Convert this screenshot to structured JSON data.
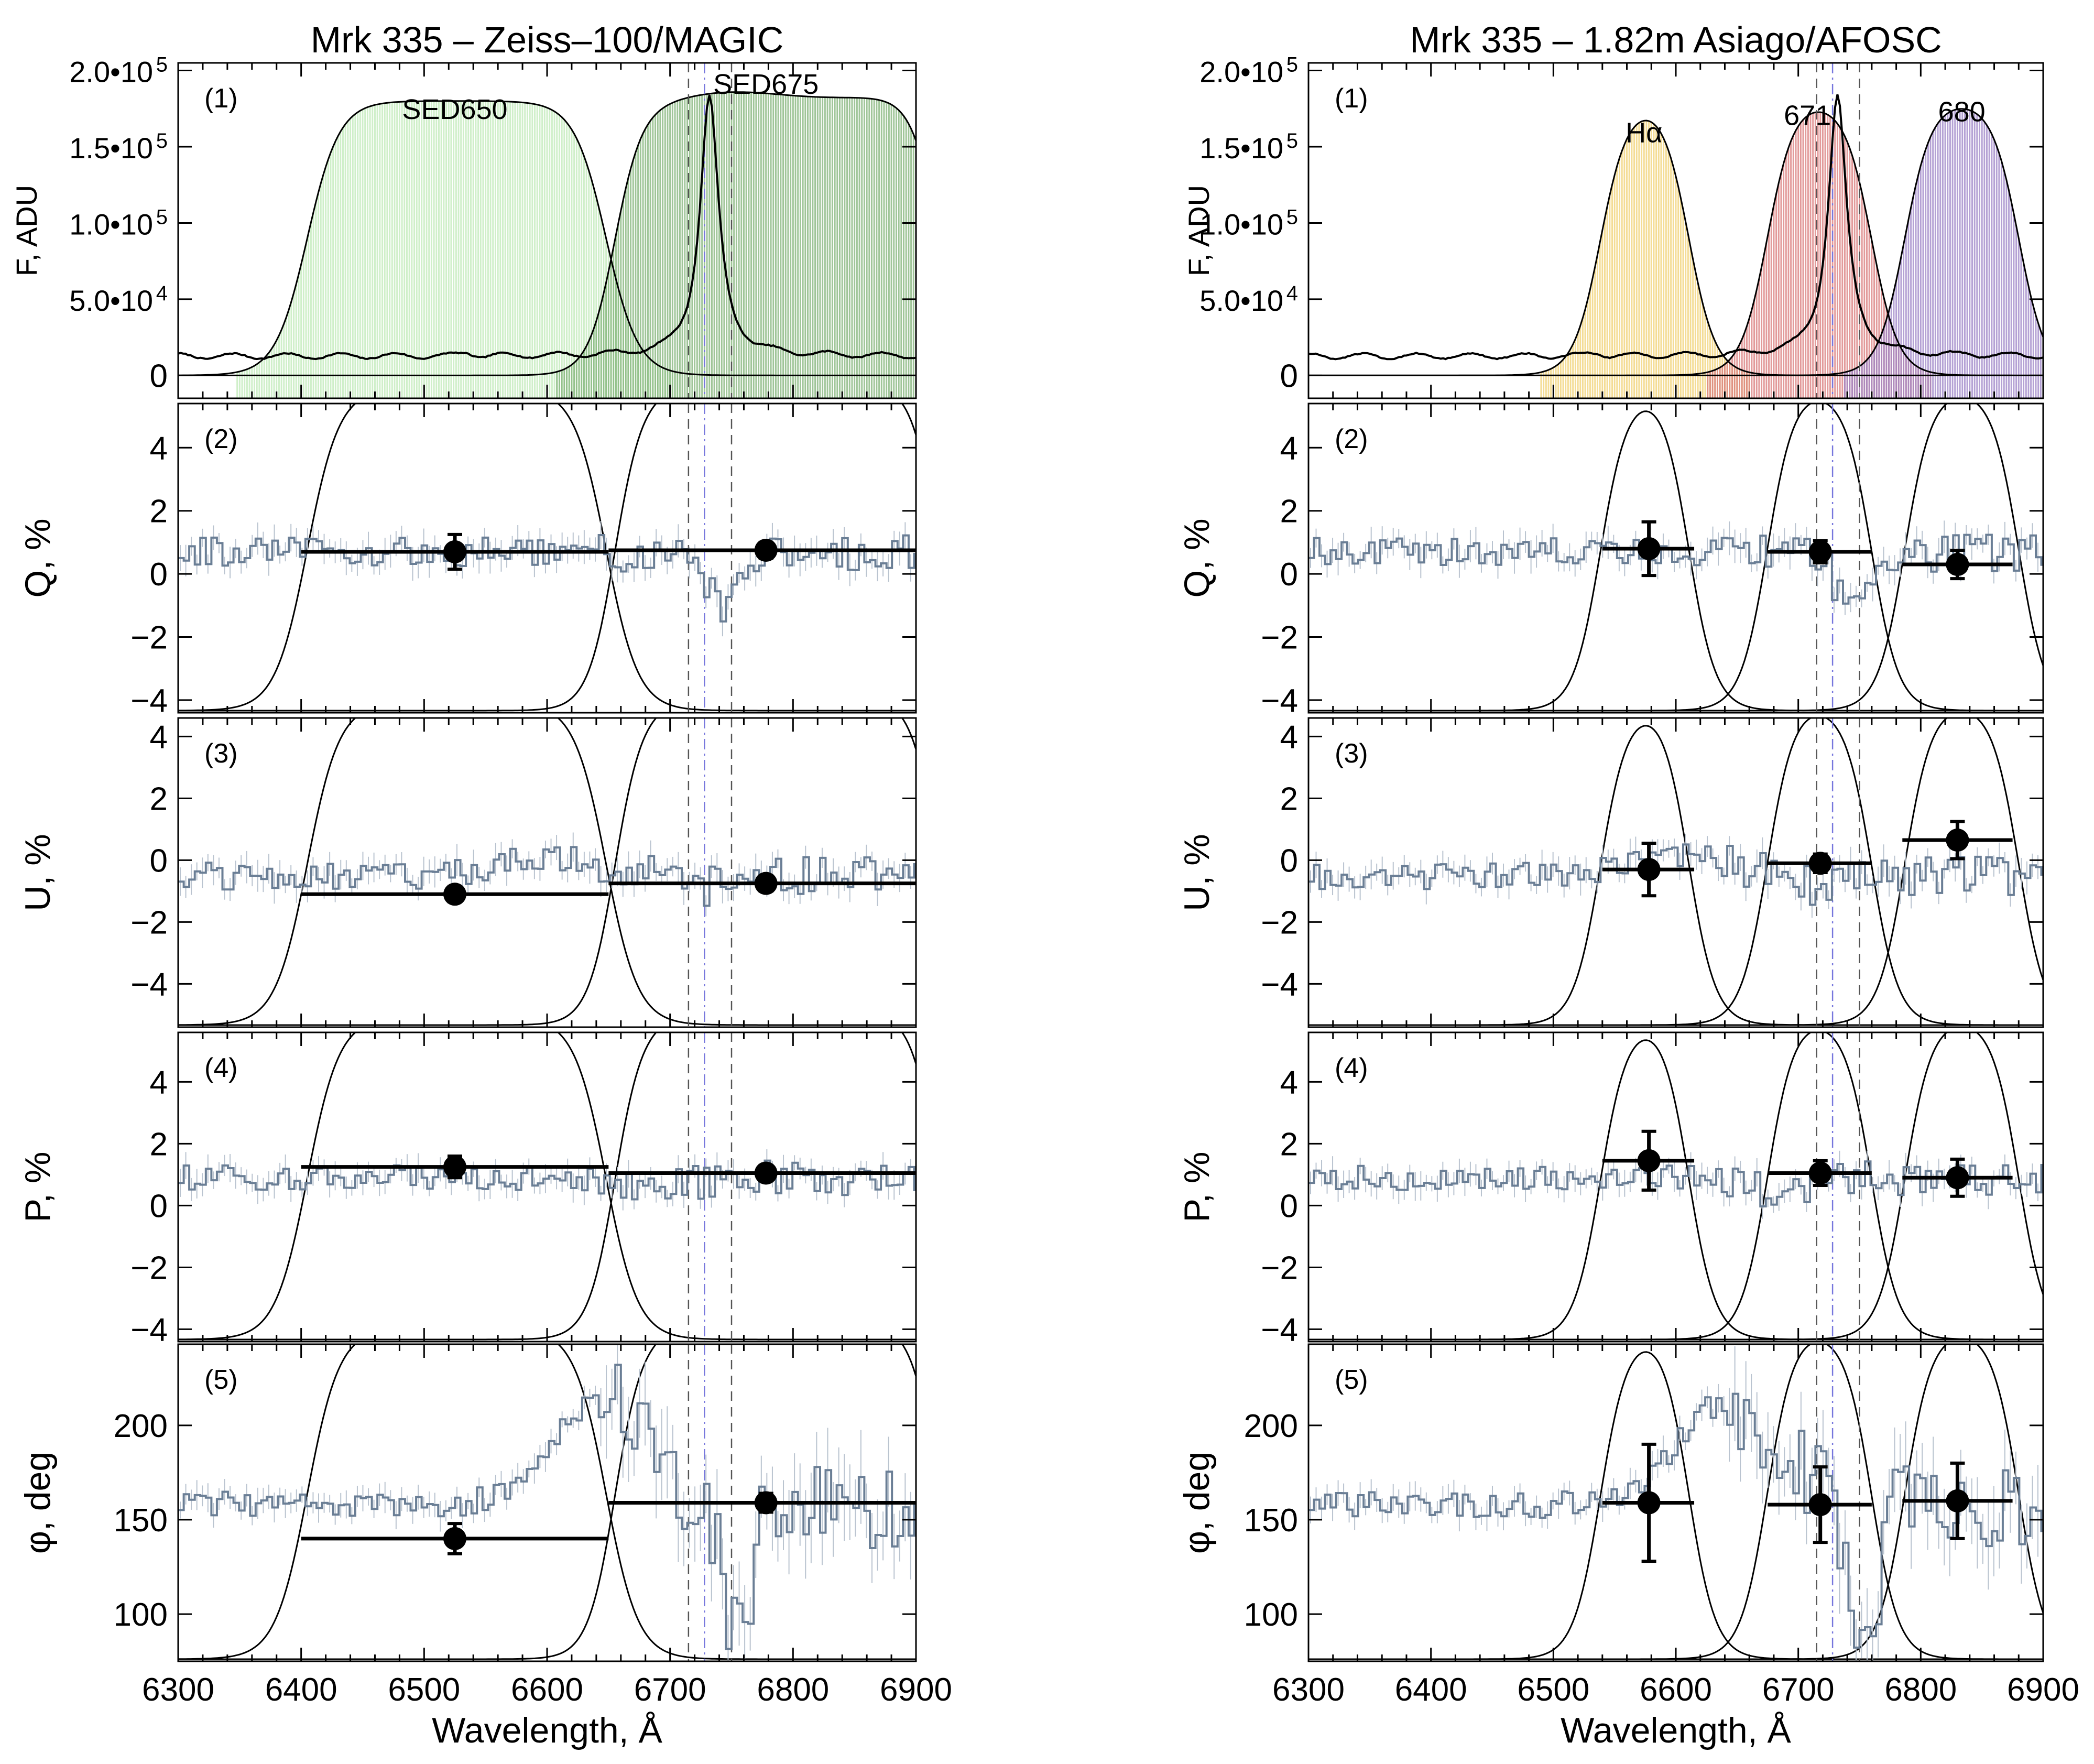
{
  "chart_data": [
    {
      "type": "line",
      "title": "Mrk 335   –   Zeiss–100/MAGIC",
      "xlabel": "Wavelength, Å",
      "xlim": [
        6300,
        6900
      ],
      "xticks": [
        "6300",
        "6400",
        "6500",
        "6600",
        "6700",
        "6800",
        "6900"
      ],
      "vlines": {
        "dashed": [
          6715,
          6750
        ],
        "dashdot": [
          6728
        ]
      },
      "filters": [
        {
          "name": "SED650",
          "left": 6405,
          "right": 6648,
          "width": 13,
          "peak": 0.9,
          "tilt": 0,
          "bump": 0,
          "color": "#bfe9b7",
          "label": "SED650"
        },
        {
          "name": "SED675",
          "left": 6655,
          "right": 6918,
          "width": 11,
          "peak": 0.93,
          "tilt": 0.05,
          "bump": 0.04,
          "color": "#7fb276",
          "label": "SED675"
        }
      ],
      "spectrum": {
        "continuum": 0.07,
        "line_center": 6732,
        "line_peak": 0.95,
        "line_width": 9
      },
      "panels": [
        {
          "id": "1",
          "label": "(1)",
          "ylabel": "F, ADU",
          "ylim": [
            -0.15,
            2.05
          ],
          "yticks": [
            {
              "v": 0,
              "t": "0"
            },
            {
              "v": 0.5,
              "t": "5.0•10",
              "e": "4"
            },
            {
              "v": 1.0,
              "t": "1.0•10",
              "e": "5"
            },
            {
              "v": 1.5,
              "t": "1.5•10",
              "e": "5"
            },
            {
              "v": 2.0,
              "t": "2.0•10",
              "e": "5"
            }
          ]
        },
        {
          "id": "2",
          "label": "(2)",
          "ylabel": "Q, %",
          "ylim": [
            -4.4,
            5.4
          ],
          "yticks": [
            {
              "v": -4,
              "t": "−4"
            },
            {
              "v": -2,
              "t": "−2"
            },
            {
              "v": 0,
              "t": "0"
            },
            {
              "v": 2,
              "t": "2"
            },
            {
              "v": 4,
              "t": "4"
            }
          ],
          "curve": {
            "base": 0.7,
            "amp": 0.45,
            "dips": [
              {
                "c": 6742,
                "w": 18,
                "a": -1.9
              }
            ]
          },
          "points": [
            {
              "x": 6525,
              "y": 0.7,
              "xerr": [
                6400,
                6650
              ],
              "yerr": 0.55
            },
            {
              "x": 6778,
              "y": 0.75,
              "xerr": [
                6650,
                6900
              ],
              "yerr": 0.25
            }
          ]
        },
        {
          "id": "3",
          "label": "(3)",
          "ylabel": "U, %",
          "ylim": [
            -5.4,
            4.6
          ],
          "yticks": [
            {
              "v": -4,
              "t": "−4"
            },
            {
              "v": -2,
              "t": "−2"
            },
            {
              "v": 0,
              "t": "0"
            },
            {
              "v": 2,
              "t": "2"
            },
            {
              "v": 4,
              "t": "4"
            }
          ],
          "curve": {
            "base": -0.5,
            "amp": 0.45,
            "dips": [
              {
                "c": 6600,
                "w": 60,
                "a": 0.6
              },
              {
                "c": 6720,
                "w": 25,
                "a": -0.4
              }
            ]
          },
          "points": [
            {
              "x": 6525,
              "y": -1.1,
              "xerr": [
                6400,
                6650
              ],
              "yerr": 0.25
            },
            {
              "x": 6778,
              "y": -0.75,
              "xerr": [
                6650,
                6900
              ],
              "yerr": 0.25
            }
          ]
        },
        {
          "id": "4",
          "label": "(4)",
          "ylabel": "P, %",
          "ylim": [
            -4.4,
            5.6
          ],
          "yticks": [
            {
              "v": -4,
              "t": "−4"
            },
            {
              "v": -2,
              "t": "−2"
            },
            {
              "v": 0,
              "t": "0"
            },
            {
              "v": 2,
              "t": "2"
            },
            {
              "v": 4,
              "t": "4"
            }
          ],
          "curve": {
            "base": 0.9,
            "amp": 0.4,
            "dips": [
              {
                "c": 6680,
                "w": 40,
                "a": -0.4
              }
            ]
          },
          "points": [
            {
              "x": 6525,
              "y": 1.25,
              "xerr": [
                6400,
                6650
              ],
              "yerr": 0.35
            },
            {
              "x": 6778,
              "y": 1.05,
              "xerr": [
                6650,
                6900
              ],
              "yerr": 0.25
            }
          ]
        },
        {
          "id": "5",
          "label": "(5)",
          "ylabel": "φ, deg",
          "ylim": [
            75,
            243
          ],
          "yticks": [
            {
              "v": 100,
              "t": "100"
            },
            {
              "v": 150,
              "t": "150"
            },
            {
              "v": 200,
              "t": "200"
            }
          ],
          "curve": {
            "base": 158,
            "amp": 7,
            "dips": [
              {
                "c": 6640,
                "w": 55,
                "a": 55
              },
              {
                "c": 6752,
                "w": 15,
                "a": -75
              }
            ]
          },
          "points": [
            {
              "x": 6525,
              "y": 140,
              "xerr": [
                6400,
                6650
              ],
              "yerr": 8
            },
            {
              "x": 6778,
              "y": 159,
              "xerr": [
                6650,
                6900
              ],
              "yerr": 5
            }
          ]
        }
      ]
    },
    {
      "type": "line",
      "title": "Mrk 335   –   1.82m Asiago/AFOSC",
      "xlabel": "Wavelength, Å",
      "xlim": [
        6300,
        6900
      ],
      "xticks": [
        "6300",
        "6400",
        "6500",
        "6600",
        "6700",
        "6800",
        "6900"
      ],
      "vlines": {
        "dashed": [
          6715,
          6750
        ],
        "dashdot": [
          6728
        ]
      },
      "filters": [
        {
          "name": "Hα",
          "left": 6538,
          "right": 6610,
          "width": 11,
          "peak": 0.78,
          "tilt": 0.06,
          "bump": 0,
          "color": "#f0d070",
          "label": "Hα"
        },
        {
          "name": "671",
          "left": 6675,
          "right": 6760,
          "width": 11,
          "peak": 0.88,
          "tilt": -0.03,
          "bump": 0,
          "color": "#d87878",
          "label": "671"
        },
        {
          "name": "680",
          "left": 6787,
          "right": 6880,
          "width": 11,
          "peak": 0.88,
          "tilt": 0,
          "bump": 0,
          "color": "#9b82c6",
          "label": "680"
        }
      ],
      "spectrum": {
        "continuum": 0.07,
        "line_center": 6732,
        "line_peak": 0.95,
        "line_width": 9
      },
      "panels": [
        {
          "id": "1",
          "label": "(1)",
          "ylabel": "F, ADU",
          "ylim": [
            -0.15,
            2.05
          ],
          "yticks": [
            {
              "v": 0,
              "t": "0"
            },
            {
              "v": 0.5,
              "t": "5.0•10",
              "e": "4"
            },
            {
              "v": 1.0,
              "t": "1.0•10",
              "e": "5"
            },
            {
              "v": 1.5,
              "t": "1.5•10",
              "e": "5"
            },
            {
              "v": 2.0,
              "t": "2.0•10",
              "e": "5"
            }
          ]
        },
        {
          "id": "2",
          "label": "(2)",
          "ylabel": "Q, %",
          "ylim": [
            -4.4,
            5.4
          ],
          "yticks": [
            {
              "v": -4,
              "t": "−4"
            },
            {
              "v": -2,
              "t": "−2"
            },
            {
              "v": 0,
              "t": "0"
            },
            {
              "v": 2,
              "t": "2"
            },
            {
              "v": 4,
              "t": "4"
            }
          ],
          "curve": {
            "base": 0.7,
            "amp": 0.45,
            "dips": [
              {
                "c": 6742,
                "w": 18,
                "a": -1.9
              }
            ]
          },
          "points": [
            {
              "x": 6578,
              "y": 0.8,
              "xerr": [
                6540,
                6615
              ],
              "yerr": 0.85
            },
            {
              "x": 6718,
              "y": 0.7,
              "xerr": [
                6675,
                6760
              ],
              "yerr": 0.35
            },
            {
              "x": 6830,
              "y": 0.3,
              "xerr": [
                6785,
                6875
              ],
              "yerr": 0.45
            }
          ]
        },
        {
          "id": "3",
          "label": "(3)",
          "ylabel": "U, %",
          "ylim": [
            -5.4,
            4.6
          ],
          "yticks": [
            {
              "v": -4,
              "t": "−4"
            },
            {
              "v": -2,
              "t": "−2"
            },
            {
              "v": 0,
              "t": "0"
            },
            {
              "v": 2,
              "t": "2"
            },
            {
              "v": 4,
              "t": "4"
            }
          ],
          "curve": {
            "base": -0.5,
            "amp": 0.45,
            "dips": [
              {
                "c": 6600,
                "w": 60,
                "a": 0.6
              },
              {
                "c": 6720,
                "w": 25,
                "a": -0.4
              }
            ]
          },
          "points": [
            {
              "x": 6578,
              "y": -0.3,
              "xerr": [
                6540,
                6615
              ],
              "yerr": 0.85
            },
            {
              "x": 6718,
              "y": -0.1,
              "xerr": [
                6675,
                6760
              ],
              "yerr": 0.3
            },
            {
              "x": 6830,
              "y": 0.65,
              "xerr": [
                6785,
                6875
              ],
              "yerr": 0.6
            }
          ]
        },
        {
          "id": "4",
          "label": "(4)",
          "ylabel": "P, %",
          "ylim": [
            -4.4,
            5.6
          ],
          "yticks": [
            {
              "v": -4,
              "t": "−4"
            },
            {
              "v": -2,
              "t": "−2"
            },
            {
              "v": 0,
              "t": "0"
            },
            {
              "v": 2,
              "t": "2"
            },
            {
              "v": 4,
              "t": "4"
            }
          ],
          "curve": {
            "base": 0.9,
            "amp": 0.4,
            "dips": [
              {
                "c": 6680,
                "w": 40,
                "a": -0.4
              }
            ]
          },
          "points": [
            {
              "x": 6578,
              "y": 1.45,
              "xerr": [
                6540,
                6615
              ],
              "yerr": 0.95
            },
            {
              "x": 6718,
              "y": 1.05,
              "xerr": [
                6675,
                6760
              ],
              "yerr": 0.4
            },
            {
              "x": 6830,
              "y": 0.9,
              "xerr": [
                6785,
                6875
              ],
              "yerr": 0.6
            }
          ]
        },
        {
          "id": "5",
          "label": "(5)",
          "ylabel": "φ, deg",
          "ylim": [
            75,
            243
          ],
          "yticks": [
            {
              "v": 100,
              "t": "100"
            },
            {
              "v": 150,
              "t": "150"
            },
            {
              "v": 200,
              "t": "200"
            }
          ],
          "curve": {
            "base": 158,
            "amp": 7,
            "dips": [
              {
                "c": 6640,
                "w": 55,
                "a": 55
              },
              {
                "c": 6752,
                "w": 15,
                "a": -75
              }
            ]
          },
          "points": [
            {
              "x": 6578,
              "y": 159,
              "xerr": [
                6540,
                6615
              ],
              "yerr": 31
            },
            {
              "x": 6718,
              "y": 158,
              "xerr": [
                6675,
                6760
              ],
              "yerr": 20
            },
            {
              "x": 6830,
              "y": 160,
              "xerr": [
                6785,
                6875
              ],
              "yerr": 20
            }
          ]
        }
      ]
    }
  ]
}
